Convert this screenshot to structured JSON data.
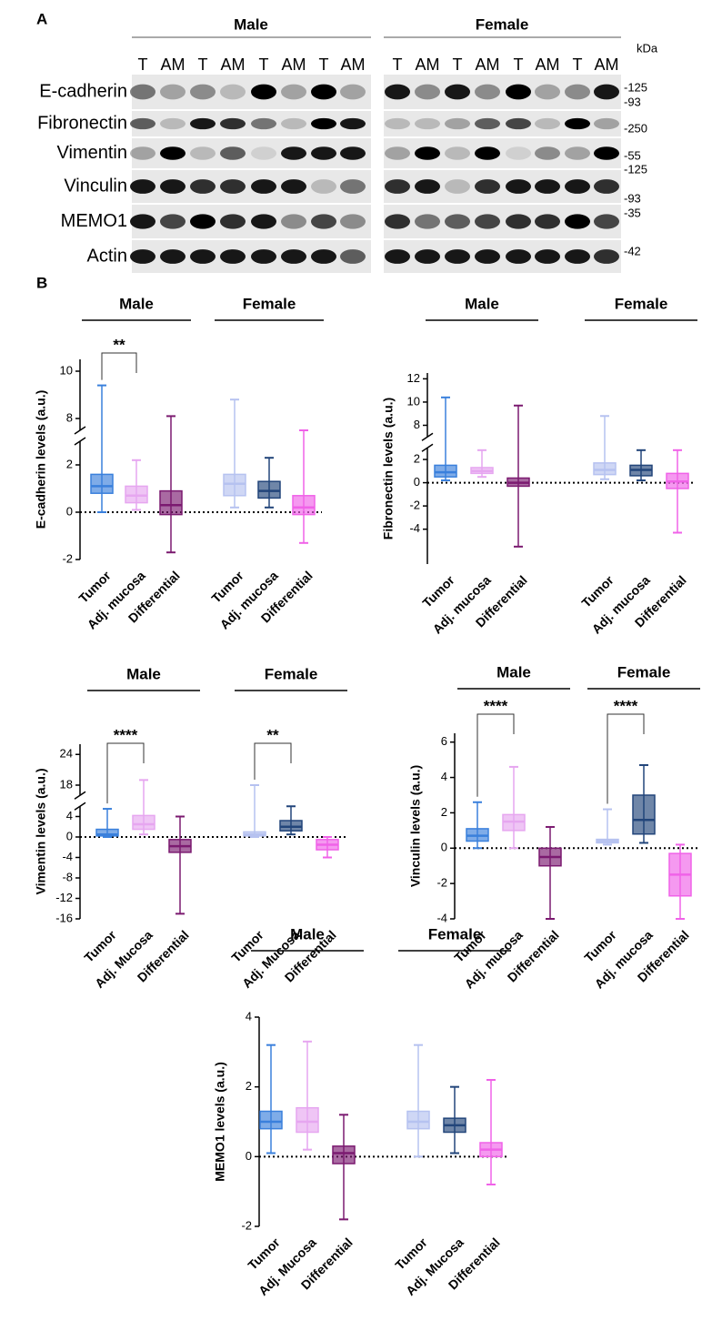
{
  "panel_b_label": "B",
  "blot": {
    "label": "A",
    "groups": [
      "Male",
      "Female"
    ],
    "unit": "kDa",
    "lanes": [
      "T",
      "AM",
      "T",
      "AM",
      "T",
      "AM",
      "T",
      "AM"
    ],
    "rows": [
      {
        "name": "E-cadherin",
        "markers": [
          "-125",
          "-93"
        ]
      },
      {
        "name": "Fibronectin",
        "markers": [
          "-250"
        ]
      },
      {
        "name": "Vimentin",
        "markers": [
          "-55"
        ]
      },
      {
        "name": "Vinculin",
        "markers": [
          "-125",
          "-93"
        ]
      },
      {
        "name": "MEMO1",
        "markers": [
          "-35"
        ]
      },
      {
        "name": "Actin",
        "markers": [
          "-42"
        ]
      }
    ]
  },
  "chart_data": [
    {
      "type": "box",
      "ylabel": "E-cadherin levels (a.u.)",
      "groups": [
        "Male",
        "Female"
      ],
      "ylim": [
        -2,
        10.5
      ],
      "axis_break": [
        3,
        7.5
      ],
      "yticks": [
        -2,
        0,
        2,
        8,
        10
      ],
      "zero_line": true,
      "boxes": [
        {
          "name": "Tumor",
          "color": "#3a80dc",
          "min": 0,
          "q1": 0.8,
          "median": 1.1,
          "q3": 1.6,
          "max": 9.4
        },
        {
          "name": "Adj. mucosa",
          "color": "#e6a6f0",
          "min": 0.1,
          "q1": 0.4,
          "median": 0.7,
          "q3": 1.1,
          "max": 2.2
        },
        {
          "name": "Differential",
          "color": "#7b1a70",
          "min": -1.7,
          "q1": -0.1,
          "median": 0.3,
          "q3": 0.9,
          "max": 8.1
        },
        {
          "name": "Tumor",
          "color": "#b6c2f0",
          "min": 0.2,
          "q1": 0.7,
          "median": 1.2,
          "q3": 1.6,
          "max": 8.8
        },
        {
          "name": "Adj. mucosa",
          "color": "#22457a",
          "min": 0.2,
          "q1": 0.6,
          "median": 0.9,
          "q3": 1.3,
          "max": 2.3
        },
        {
          "name": "Differential",
          "color": "#f062e8",
          "min": -1.3,
          "q1": -0.1,
          "median": 0.2,
          "q3": 0.7,
          "max": 7.5
        }
      ],
      "annotations": [
        {
          "text": "**",
          "from": 0,
          "to": 1
        }
      ]
    },
    {
      "type": "box",
      "ylabel": "Fibronectin levels (a.u.)",
      "groups": [
        "Male",
        "Female"
      ],
      "ylim": [
        -7,
        12.5
      ],
      "axis_break": [
        3,
        7
      ],
      "yticks": [
        -4,
        -2,
        0,
        2,
        8,
        10,
        12
      ],
      "zero_line": true,
      "boxes": [
        {
          "name": "Tumor",
          "color": "#3a80dc",
          "min": 0.2,
          "q1": 0.5,
          "median": 0.9,
          "q3": 1.5,
          "max": 10.4
        },
        {
          "name": "Adj. mucosa",
          "color": "#e6a6f0",
          "min": 0.5,
          "q1": 0.8,
          "median": 1.0,
          "q3": 1.3,
          "max": 2.8
        },
        {
          "name": "Differential",
          "color": "#7b1a70",
          "min": -5.5,
          "q1": -0.3,
          "median": 0,
          "q3": 0.4,
          "max": 9.7
        },
        {
          "name": "Tumor",
          "color": "#b6c2f0",
          "min": 0.3,
          "q1": 0.7,
          "median": 1.1,
          "q3": 1.7,
          "max": 8.8
        },
        {
          "name": "Adj. mucosa",
          "color": "#22457a",
          "min": 0.2,
          "q1": 0.6,
          "median": 1.1,
          "q3": 1.5,
          "max": 2.8
        },
        {
          "name": "Differential",
          "color": "#f062e8",
          "min": -4.3,
          "q1": -0.5,
          "median": 0.1,
          "q3": 0.8,
          "max": 2.8
        }
      ],
      "annotations": []
    },
    {
      "type": "box",
      "ylabel": "Vimentin levels (a.u.)",
      "groups": [
        "Male",
        "Female"
      ],
      "ylim": [
        -16,
        26
      ],
      "axis_break": [
        6,
        16
      ],
      "yticks": [
        -16,
        -12,
        -8,
        -4,
        0,
        4,
        18,
        24
      ],
      "zero_line": true,
      "boxes": [
        {
          "name": "Tumor",
          "color": "#3a80dc",
          "min": 0,
          "q1": 0.2,
          "median": 0.5,
          "q3": 1.5,
          "max": 5.5
        },
        {
          "name": "Adj. Mucosa",
          "color": "#e6a6f0",
          "min": 0.5,
          "q1": 1.5,
          "median": 2.5,
          "q3": 4.2,
          "max": 19
        },
        {
          "name": "Differential",
          "color": "#7b1a70",
          "min": -15,
          "q1": -3,
          "median": -1.8,
          "q3": -0.5,
          "max": 4
        },
        {
          "name": "Tumor",
          "color": "#b6c2f0",
          "min": 0,
          "q1": 0.2,
          "median": 0.5,
          "q3": 1,
          "max": 18
        },
        {
          "name": "Adj. Mucosa",
          "color": "#22457a",
          "min": 0.5,
          "q1": 1.2,
          "median": 2,
          "q3": 3.2,
          "max": 6
        },
        {
          "name": "Differential",
          "color": "#f062e8",
          "min": -4,
          "q1": -2.5,
          "median": -1.5,
          "q3": -0.5,
          "max": 0
        }
      ],
      "annotations": [
        {
          "text": "****",
          "from": 0,
          "to": 1
        },
        {
          "text": "**",
          "from": 3,
          "to": 4
        }
      ]
    },
    {
      "type": "box",
      "ylabel": "Vinculin levels (a.u.)",
      "groups": [
        "Male",
        "Female"
      ],
      "ylim": [
        -4,
        6.5
      ],
      "yticks": [
        -4,
        -2,
        0,
        2,
        4,
        6
      ],
      "zero_line": true,
      "boxes": [
        {
          "name": "Tumor",
          "color": "#3a80dc",
          "min": 0,
          "q1": 0.4,
          "median": 0.7,
          "q3": 1.1,
          "max": 2.6
        },
        {
          "name": "Adj. mucosa",
          "color": "#e6a6f0",
          "min": 0,
          "q1": 1,
          "median": 1.5,
          "q3": 1.9,
          "max": 4.6
        },
        {
          "name": "Differential",
          "color": "#7b1a70",
          "min": -4,
          "q1": -1,
          "median": -0.5,
          "q3": 0,
          "max": 1.2
        },
        {
          "name": "Tumor",
          "color": "#b6c2f0",
          "min": 0.2,
          "q1": 0.3,
          "median": 0.4,
          "q3": 0.5,
          "max": 2.2
        },
        {
          "name": "Adj. mucosa",
          "color": "#22457a",
          "min": 0.3,
          "q1": 0.8,
          "median": 1.6,
          "q3": 3,
          "max": 4.7
        },
        {
          "name": "Differential",
          "color": "#f062e8",
          "min": -4,
          "q1": -2.7,
          "median": -1.5,
          "q3": -0.3,
          "max": 0.2
        }
      ],
      "annotations": [
        {
          "text": "****",
          "from": 0,
          "to": 1
        },
        {
          "text": "****",
          "from": 3,
          "to": 4
        }
      ]
    },
    {
      "type": "box",
      "ylabel": "MEMO1 levels (a.u.)",
      "groups": [
        "Male",
        "Female"
      ],
      "ylim": [
        -2,
        4
      ],
      "yticks": [
        -2,
        0,
        2,
        4
      ],
      "zero_line": true,
      "boxes": [
        {
          "name": "Tumor",
          "color": "#3a80dc",
          "min": 0.1,
          "q1": 0.8,
          "median": 1,
          "q3": 1.3,
          "max": 3.2
        },
        {
          "name": "Adj. Mucosa",
          "color": "#e6a6f0",
          "min": 0.2,
          "q1": 0.7,
          "median": 1,
          "q3": 1.4,
          "max": 3.3
        },
        {
          "name": "Differential",
          "color": "#7b1a70",
          "min": -1.8,
          "q1": -0.2,
          "median": 0.1,
          "q3": 0.3,
          "max": 1.2
        },
        {
          "name": "Tumor",
          "color": "#b6c2f0",
          "min": 0,
          "q1": 0.8,
          "median": 1,
          "q3": 1.3,
          "max": 3.2
        },
        {
          "name": "Adj. Mucosa",
          "color": "#22457a",
          "min": 0.1,
          "q1": 0.7,
          "median": 0.9,
          "q3": 1.1,
          "max": 2
        },
        {
          "name": "Differential",
          "color": "#f062e8",
          "min": -0.8,
          "q1": 0,
          "median": 0.2,
          "q3": 0.4,
          "max": 2.2
        }
      ],
      "annotations": []
    }
  ]
}
